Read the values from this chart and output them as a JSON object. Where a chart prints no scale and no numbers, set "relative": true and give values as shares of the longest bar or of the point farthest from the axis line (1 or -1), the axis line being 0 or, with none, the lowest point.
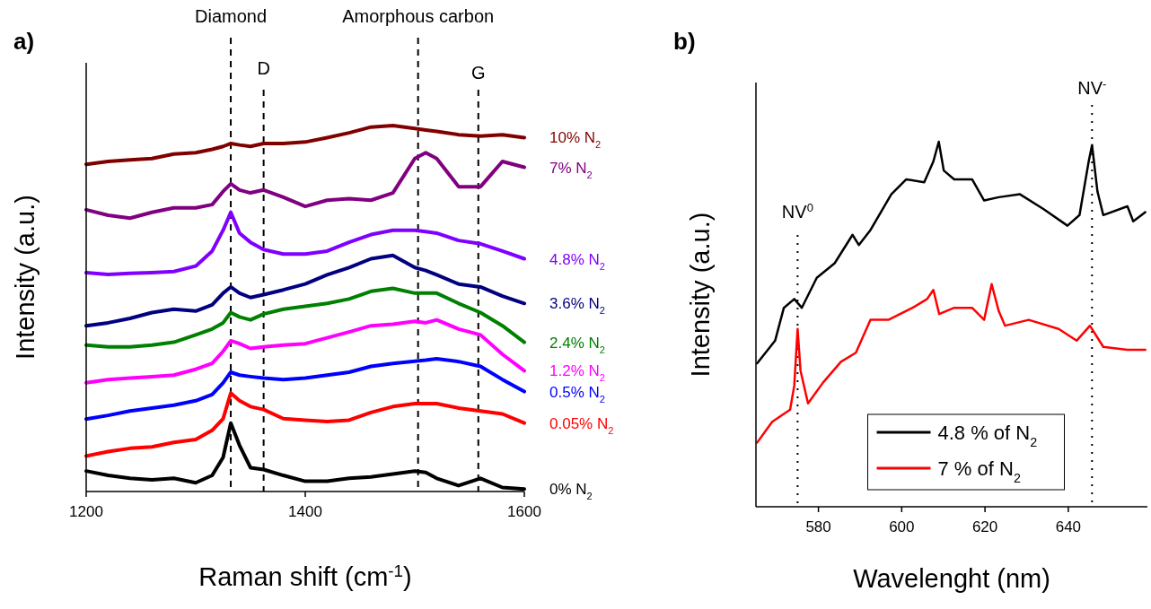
{
  "chart_data": [
    {
      "type": "line",
      "title": "a)",
      "xlabel": "Raman shift (cm$^{-1}$)",
      "ylabel": "Intensity (a.u.)",
      "relative": true,
      "xlim": [
        1200,
        1600
      ],
      "xticks": [
        1200,
        1400,
        1600
      ],
      "x": [
        1200,
        1220,
        1240,
        1260,
        1280,
        1300,
        1315,
        1325,
        1332,
        1340,
        1350,
        1362,
        1380,
        1400,
        1420,
        1440,
        1460,
        1480,
        1500,
        1510,
        1520,
        1540,
        1560,
        1580,
        1600
      ],
      "series": [
        {
          "name": "10% N$_{2}$",
          "color": "#800000",
          "values": [
            0.894,
            0.902,
            0.906,
            0.91,
            0.922,
            0.926,
            0.935,
            0.943,
            0.951,
            0.947,
            0.943,
            0.951,
            0.951,
            0.955,
            0.967,
            0.98,
            0.996,
            1,
            0.992,
            0.988,
            0.984,
            0.975,
            0.971,
            0.975,
            0.967
          ]
        },
        {
          "name": "7% N$_{2}$",
          "color": "#800080",
          "values": [
            0.77,
            0.755,
            0.747,
            0.763,
            0.775,
            0.775,
            0.784,
            0.82,
            0.841,
            0.824,
            0.816,
            0.824,
            0.804,
            0.779,
            0.796,
            0.8,
            0.796,
            0.816,
            0.91,
            0.926,
            0.91,
            0.833,
            0.833,
            0.902,
            0.886
          ]
        },
        {
          "name": "4.8% N$_{2}$",
          "color": "#8000ff",
          "values": [
            0.598,
            0.593,
            0.596,
            0.598,
            0.601,
            0.616,
            0.657,
            0.714,
            0.763,
            0.706,
            0.681,
            0.661,
            0.649,
            0.649,
            0.657,
            0.681,
            0.702,
            0.714,
            0.714,
            0.71,
            0.706,
            0.686,
            0.677,
            0.657,
            0.636
          ]
        },
        {
          "name": "3.6% N$_{2}$",
          "color": "#000080",
          "values": [
            0.453,
            0.461,
            0.473,
            0.489,
            0.498,
            0.493,
            0.51,
            0.542,
            0.559,
            0.542,
            0.53,
            0.538,
            0.551,
            0.567,
            0.592,
            0.612,
            0.636,
            0.645,
            0.612,
            0.604,
            0.592,
            0.567,
            0.559,
            0.534,
            0.514
          ]
        },
        {
          "name": "2.4% N$_{2}$",
          "color": "#008000",
          "values": [
            0.4,
            0.395,
            0.395,
            0.4,
            0.408,
            0.428,
            0.444,
            0.461,
            0.489,
            0.477,
            0.469,
            0.485,
            0.498,
            0.506,
            0.514,
            0.526,
            0.547,
            0.555,
            0.542,
            0.542,
            0.542,
            0.514,
            0.489,
            0.453,
            0.408
          ]
        },
        {
          "name": "1.2% N$_{2}$",
          "color": "#ff00ff",
          "values": [
            0.297,
            0.306,
            0.31,
            0.314,
            0.318,
            0.334,
            0.35,
            0.383,
            0.412,
            0.404,
            0.391,
            0.395,
            0.4,
            0.404,
            0.42,
            0.436,
            0.453,
            0.457,
            0.465,
            0.461,
            0.469,
            0.444,
            0.428,
            0.375,
            0.33
          ]
        },
        {
          "name": "0.5% N$_{2}$",
          "color": "#0000ff",
          "values": [
            0.198,
            0.208,
            0.22,
            0.228,
            0.236,
            0.248,
            0.265,
            0.297,
            0.326,
            0.318,
            0.314,
            0.31,
            0.306,
            0.31,
            0.318,
            0.326,
            0.342,
            0.35,
            0.356,
            0.359,
            0.363,
            0.355,
            0.342,
            0.306,
            0.273
          ]
        },
        {
          "name": "0.05% N$_{2}$",
          "color": "#ff0000",
          "values": [
            0.097,
            0.109,
            0.118,
            0.122,
            0.134,
            0.142,
            0.167,
            0.199,
            0.269,
            0.248,
            0.232,
            0.224,
            0.199,
            0.195,
            0.191,
            0.195,
            0.216,
            0.232,
            0.24,
            0.24,
            0.24,
            0.228,
            0.22,
            0.212,
            0.187
          ]
        },
        {
          "name": "0% N$_{2}$",
          "color": "#000000",
          "values": [
            0.056,
            0.044,
            0.036,
            0.032,
            0.036,
            0.024,
            0.044,
            0.093,
            0.187,
            0.126,
            0.065,
            0.06,
            0.044,
            0.028,
            0.028,
            0.036,
            0.04,
            0.048,
            0.056,
            0.052,
            0.036,
            0.016,
            0.036,
            0.011,
            0.007
          ]
        }
      ],
      "ref_lines": [
        {
          "axis": "x",
          "value": 1332,
          "label": "Diamond",
          "line_style": "dashed",
          "color": "#000000"
        },
        {
          "axis": "x",
          "value": 1362,
          "label": "D",
          "line_style": "dashed",
          "color": "#000000"
        },
        {
          "axis": "x",
          "value": 1503,
          "label": "Amorphous carbon",
          "line_style": "dashed",
          "color": "#000000"
        },
        {
          "axis": "x",
          "value": 1558,
          "label": "G",
          "line_style": "dashed",
          "color": "#000000"
        }
      ]
    },
    {
      "type": "line",
      "title": "b)",
      "xlabel": "Wavelenght (nm)",
      "ylabel": "Intensity (a.u.)",
      "relative": true,
      "xlim": [
        565,
        659
      ],
      "xticks": [
        580,
        600,
        620,
        640
      ],
      "legend": "bottom",
      "series": [
        {
          "name": "4.8 % of N$_{2}$",
          "color": "#000000",
          "x": [
            565.3,
            569.6,
            571.7,
            574.2,
            576.0,
            579.6,
            583.9,
            588.2,
            589.7,
            592.5,
            597.5,
            601.1,
            605.4,
            607.6,
            608.9,
            610.1,
            612.6,
            616.9,
            619.8,
            623.3,
            628.4,
            634.1,
            639.8,
            642.7,
            644.9,
            645.7,
            647.0,
            648.4,
            654.2,
            655.6,
            658.5
          ],
          "values": [
            0.393,
            0.455,
            0.545,
            0.569,
            0.545,
            0.627,
            0.667,
            0.745,
            0.717,
            0.758,
            0.856,
            0.897,
            0.889,
            0.946,
            1,
            0.921,
            0.897,
            0.897,
            0.839,
            0.848,
            0.856,
            0.815,
            0.77,
            0.799,
            0.946,
            0.991,
            0.864,
            0.799,
            0.823,
            0.782,
            0.807
          ]
        },
        {
          "name": "7 % of N$_{2}$",
          "color": "#ff0000",
          "x": [
            565.3,
            568.9,
            573.2,
            574.2,
            575.0,
            575.7,
            577.5,
            581.1,
            585.4,
            589.0,
            592.5,
            596.8,
            602.6,
            606.1,
            607.6,
            609.0,
            612.6,
            616.9,
            619.8,
            621.6,
            623.3,
            624.8,
            630.5,
            637.7,
            642.0,
            645.2,
            648.4,
            654.2,
            658.5
          ],
          "values": [
            0.176,
            0.233,
            0.266,
            0.332,
            0.487,
            0.373,
            0.283,
            0.34,
            0.397,
            0.422,
            0.512,
            0.512,
            0.545,
            0.569,
            0.594,
            0.528,
            0.545,
            0.545,
            0.512,
            0.61,
            0.536,
            0.496,
            0.512,
            0.487,
            0.455,
            0.496,
            0.438,
            0.43,
            0.43
          ]
        }
      ],
      "ref_lines": [
        {
          "axis": "x",
          "value": 575,
          "label": "NV$^{0}$",
          "line_style": "dotted",
          "color": "#000000"
        },
        {
          "axis": "x",
          "value": 645.7,
          "label": "NV$^{-}$",
          "line_style": "dotted",
          "color": "#000000"
        }
      ]
    }
  ]
}
